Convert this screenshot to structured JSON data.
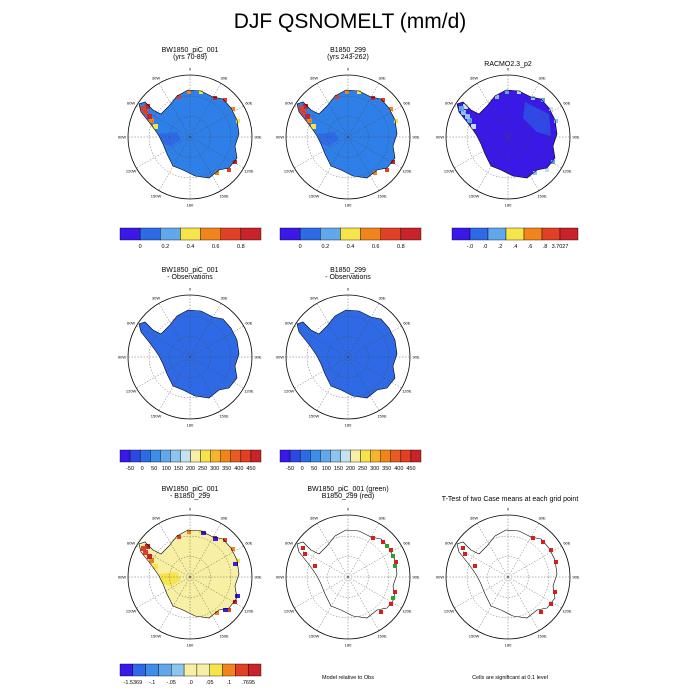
{
  "title": "DJF QSNOMELT (mm/d)",
  "panels": [
    {
      "line1": "BW1850_piC_001",
      "line2": "(yrs 70-89)",
      "style": "model"
    },
    {
      "line1": "B1850_299",
      "line2": "(yrs 243-262)",
      "style": "model"
    },
    {
      "line1": "RACMO2.3_p2",
      "line2": "",
      "style": "obs"
    },
    {
      "line1": "BW1850_piC_001",
      "line2": "- Observations",
      "style": "diffobs"
    },
    {
      "line1": "B1850_299",
      "line2": "- Observations",
      "style": "diffobs"
    },
    {
      "line1": "BW1850_piC_001",
      "line2": "- B1850_299",
      "style": "diffcase"
    },
    {
      "line1": "BW1850_piC_001 (green)",
      "line2": "B1850_299 (red)",
      "style": "sig2"
    },
    {
      "line1": "T-Test of two Case means at each grid point",
      "line2": "",
      "style": "sig1"
    }
  ],
  "map_labels": {
    "lon": [
      "0",
      "30E",
      "60E",
      "90E",
      "120E",
      "150E",
      "180",
      "150W",
      "120W",
      "90W",
      "60W",
      "30W"
    ]
  },
  "colorbars": [
    {
      "colors": [
        "#3a18e8",
        "#2f6ae6",
        "#5fa8ec",
        "#f7e34a",
        "#f2841c",
        "#e24025",
        "#c8222b"
      ],
      "labels": [
        "0",
        "0.2",
        "0.4",
        "0.6",
        "0.8"
      ]
    },
    {
      "colors": [
        "#3a18e8",
        "#2f6ae6",
        "#5fa8ec",
        "#f7e34a",
        "#f2841c",
        "#e24025",
        "#c8222b"
      ],
      "labels": [
        "0",
        "0.2",
        "0.4",
        "0.6",
        "0.8"
      ]
    },
    {
      "colors": [
        "#3a18e8",
        "#2f6ae6",
        "#5fa8ec",
        "#f7e34a",
        "#f2841c",
        "#e24025",
        "#c8222b"
      ],
      "labels": [
        "-.0",
        ".0",
        ".2",
        ".4",
        ".6",
        ".8",
        "3.7027"
      ]
    },
    {
      "colors": [
        "#3a18e8",
        "#2e48e6",
        "#2f6ae6",
        "#3e8de9",
        "#5fa8ec",
        "#8cc5ee",
        "#c3e1ef",
        "#f6efa4",
        "#f7e34a",
        "#f6b52f",
        "#f2841c",
        "#e85a1f",
        "#e24025",
        "#c8222b"
      ],
      "labels": [
        "-50",
        "0",
        "50",
        "100",
        "150",
        "200",
        "250",
        "300",
        "350",
        "400",
        "450"
      ]
    },
    {
      "colors": [
        "#3a18e8",
        "#2e48e6",
        "#2f6ae6",
        "#3e8de9",
        "#5fa8ec",
        "#8cc5ee",
        "#c3e1ef",
        "#f6efa4",
        "#f7e34a",
        "#f6b52f",
        "#f2841c",
        "#e85a1f",
        "#e24025",
        "#c8222b"
      ],
      "labels": [
        "-50",
        "0",
        "50",
        "100",
        "150",
        "200",
        "250",
        "300",
        "350",
        "400",
        "450"
      ]
    },
    {
      "colors": [
        "#3a18e8",
        "#2f6ae6",
        "#3e8de9",
        "#5fa8ec",
        "#8cc5ee",
        "#f6efa4",
        "#f6efa4",
        "#f7e34a",
        "#f2841c",
        "#e24025",
        "#c8222b"
      ],
      "labels": [
        "-1.5369",
        "-.1",
        "-.05",
        ".0",
        ".05",
        ".1",
        ".7695"
      ]
    }
  ],
  "footnotes": {
    "model_vs_obs": "Model relative to Obs",
    "significance": "Cells are significant at 0.1 level"
  },
  "chart_data": {
    "type": "heatmap",
    "title": "DJF QSNOMELT (mm/d)",
    "variable": "QSNOMELT",
    "units": "mm/d",
    "season": "DJF",
    "projection": "south polar stereographic",
    "colorbar_ranges": {
      "model": [
        0,
        0.8
      ],
      "observations": [
        -0.0,
        3.7027
      ],
      "model_minus_obs": [
        -50,
        450
      ],
      "case_difference": [
        -1.5369,
        0.7695
      ]
    }
  }
}
